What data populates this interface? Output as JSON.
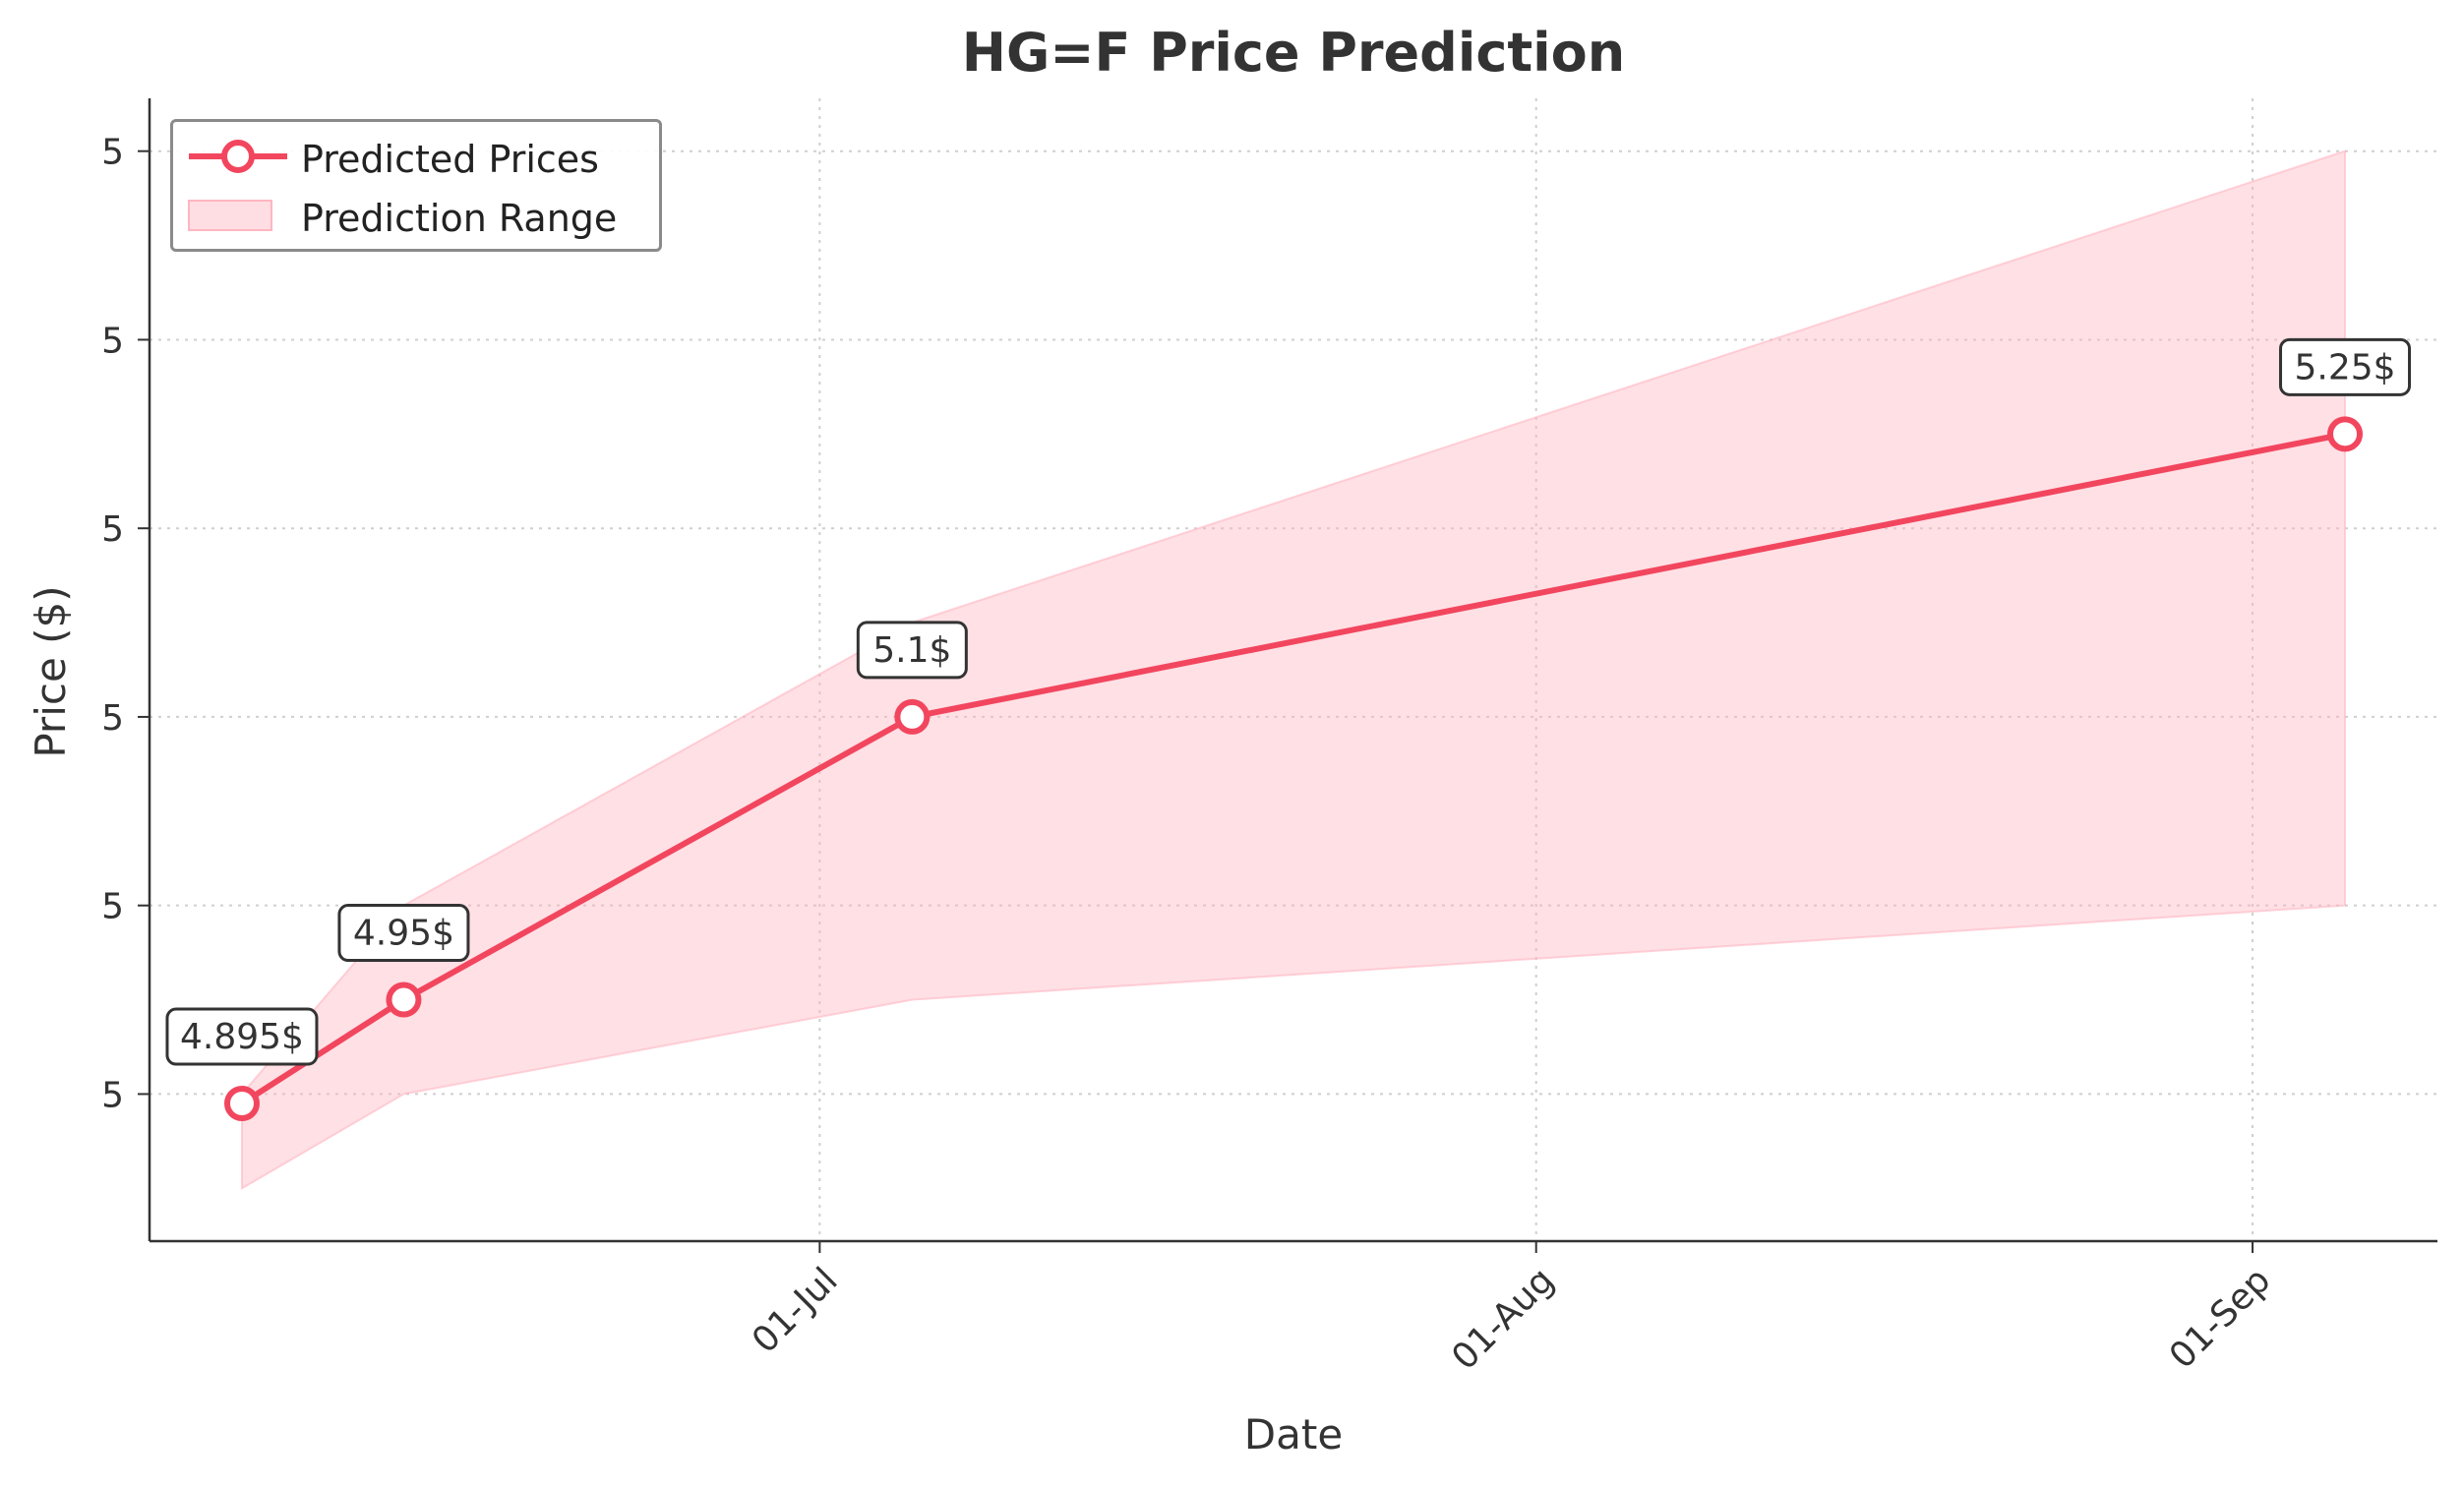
{
  "chart_data": {
    "type": "line",
    "title": "HG=F Price Prediction",
    "xlabel": "Date",
    "ylabel": "Price ($)",
    "x_ticks": [
      {
        "date": "2024-07-01",
        "label": "01-Jul"
      },
      {
        "date": "2024-08-01",
        "label": "01-Aug"
      },
      {
        "date": "2024-09-01",
        "label": "01-Sep"
      }
    ],
    "y_ticks": [
      {
        "value": 4.9,
        "label": "5"
      },
      {
        "value": 5.0,
        "label": "5"
      },
      {
        "value": 5.1,
        "label": "5"
      },
      {
        "value": 5.2,
        "label": "5"
      },
      {
        "value": 5.3,
        "label": "5"
      },
      {
        "value": 5.4,
        "label": "5"
      }
    ],
    "xlim": [
      "2024-06-02",
      "2024-09-09"
    ],
    "ylim": [
      4.822,
      5.428
    ],
    "series": [
      {
        "name": "Predicted Prices",
        "color": "#f2465e",
        "x": [
          "2024-06-06",
          "2024-06-13",
          "2024-07-05",
          "2024-09-05"
        ],
        "y": [
          4.895,
          4.95,
          5.1,
          5.25
        ],
        "labels": [
          "4.895$",
          "4.95$",
          "5.1$",
          "5.25$"
        ]
      }
    ],
    "range": {
      "name": "Prediction Range",
      "color": "#ffb6c1",
      "x": [
        "2024-06-06",
        "2024-06-13",
        "2024-07-05",
        "2024-09-05"
      ],
      "lower": [
        4.85,
        4.9,
        4.95,
        5.0
      ],
      "upper": [
        4.9,
        5.0,
        5.15,
        5.4
      ]
    },
    "grid": true,
    "legend_position": "upper-left"
  }
}
